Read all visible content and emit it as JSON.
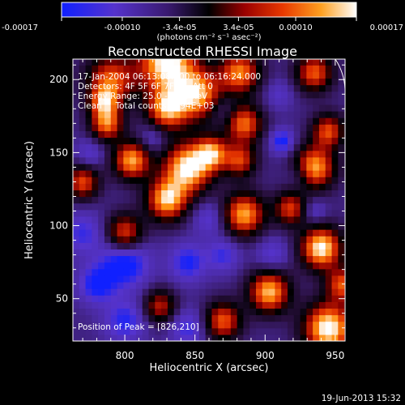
{
  "colorbar": {
    "ticks": [
      {
        "value": -0.00017,
        "label": "-0.00017"
      },
      {
        "value": -0.0001,
        "label": "-0.00010"
      },
      {
        "value": -3.4e-05,
        "label": "-3.4e-05"
      },
      {
        "value": 3.4e-05,
        "label": "3.4e-05"
      },
      {
        "value": 0.0001,
        "label": "0.00010"
      },
      {
        "value": 0.00017,
        "label": "0.00017"
      }
    ],
    "range": [
      -0.00017,
      0.00017
    ],
    "units_label": "(photons cm⁻² s⁻¹ asec⁻²)"
  },
  "chart_data": {
    "type": "heatmap",
    "title": "Reconstructed RHESSI Image",
    "xlabel": "Heliocentric X (arcsec)",
    "ylabel": "Heliocentric Y (arcsec)",
    "xlim": [
      763,
      957
    ],
    "ylim": [
      21,
      214
    ],
    "xticks": [
      800,
      850,
      900,
      950
    ],
    "yticks": [
      50,
      100,
      150,
      200
    ],
    "annotations": [
      "17-Jan-2004 06:13:08.000 to 06:16:24.000",
      "Detectors: 4F 5F 6F 7F 8F, Att 0",
      "Energy Range: 25.0 - 50.0 keV",
      "Clean     Total counts: 2.94E+03"
    ],
    "peak_text": "Position of Peak = [826,210]",
    "peak": [
      826,
      210
    ],
    "colormap": [
      "#1020ff",
      "#5533cc",
      "#4a2aa0",
      "#2a1040",
      "#000000",
      "#8a0000",
      "#e03000",
      "#ff9010",
      "#ffffff"
    ],
    "blobs": [
      {
        "x": 830,
        "y": 212,
        "v": 1.0,
        "r": 14
      },
      {
        "x": 790,
        "y": 200,
        "v": 0.55,
        "r": 12
      },
      {
        "x": 830,
        "y": 180,
        "v": 0.7,
        "r": 10
      },
      {
        "x": 852,
        "y": 190,
        "v": 0.75,
        "r": 12
      },
      {
        "x": 882,
        "y": 205,
        "v": 0.65,
        "r": 10
      },
      {
        "x": 935,
        "y": 205,
        "v": 0.55,
        "r": 9
      },
      {
        "x": 885,
        "y": 170,
        "v": 0.6,
        "r": 9
      },
      {
        "x": 882,
        "y": 145,
        "v": 0.45,
        "r": 8
      },
      {
        "x": 845,
        "y": 140,
        "v": 0.95,
        "r": 12
      },
      {
        "x": 805,
        "y": 145,
        "v": 0.75,
        "r": 9
      },
      {
        "x": 787,
        "y": 170,
        "v": 0.6,
        "r": 8
      },
      {
        "x": 770,
        "y": 130,
        "v": 0.5,
        "r": 8
      },
      {
        "x": 830,
        "y": 118,
        "v": 0.8,
        "r": 10
      },
      {
        "x": 885,
        "y": 108,
        "v": 0.75,
        "r": 10
      },
      {
        "x": 800,
        "y": 95,
        "v": 0.55,
        "r": 9
      },
      {
        "x": 935,
        "y": 140,
        "v": 0.8,
        "r": 10
      },
      {
        "x": 945,
        "y": 165,
        "v": 0.5,
        "r": 8
      },
      {
        "x": 918,
        "y": 112,
        "v": 0.45,
        "r": 8
      },
      {
        "x": 940,
        "y": 85,
        "v": 0.95,
        "r": 10
      },
      {
        "x": 955,
        "y": 60,
        "v": 0.5,
        "r": 8
      },
      {
        "x": 903,
        "y": 55,
        "v": 0.8,
        "r": 10
      },
      {
        "x": 870,
        "y": 35,
        "v": 0.55,
        "r": 9
      },
      {
        "x": 945,
        "y": 30,
        "v": 1.0,
        "r": 12
      },
      {
        "x": 825,
        "y": 45,
        "v": 0.35,
        "r": 8
      },
      {
        "x": 862,
        "y": 150,
        "v": 0.6,
        "r": 8
      },
      {
        "x": 785,
        "y": 185,
        "v": 0.4,
        "r": 7
      },
      {
        "x": 912,
        "y": 158,
        "v": -0.75,
        "r": 6
      },
      {
        "x": 800,
        "y": 75,
        "v": -0.9,
        "r": 12
      },
      {
        "x": 780,
        "y": 60,
        "v": -0.75,
        "r": 9
      },
      {
        "x": 845,
        "y": 75,
        "v": -0.7,
        "r": 9
      },
      {
        "x": 870,
        "y": 80,
        "v": -0.55,
        "r": 8
      },
      {
        "x": 770,
        "y": 95,
        "v": -0.55,
        "r": 10
      },
      {
        "x": 800,
        "y": 35,
        "v": -0.65,
        "r": 10
      },
      {
        "x": 845,
        "y": 30,
        "v": -0.55,
        "r": 9
      },
      {
        "x": 905,
        "y": 80,
        "v": -0.45,
        "r": 8
      },
      {
        "x": 925,
        "y": 135,
        "v": -0.4,
        "r": 7
      },
      {
        "x": 860,
        "y": 105,
        "v": -0.45,
        "r": 8
      },
      {
        "x": 820,
        "y": 160,
        "v": -0.4,
        "r": 7
      },
      {
        "x": 870,
        "y": 180,
        "v": -0.35,
        "r": 7
      },
      {
        "x": 910,
        "y": 190,
        "v": -0.35,
        "r": 7
      },
      {
        "x": 935,
        "y": 110,
        "v": -0.4,
        "r": 6
      },
      {
        "x": 775,
        "y": 150,
        "v": -0.4,
        "r": 7
      }
    ]
  },
  "footer": {
    "date": "19-Jun-2013 15:32"
  }
}
